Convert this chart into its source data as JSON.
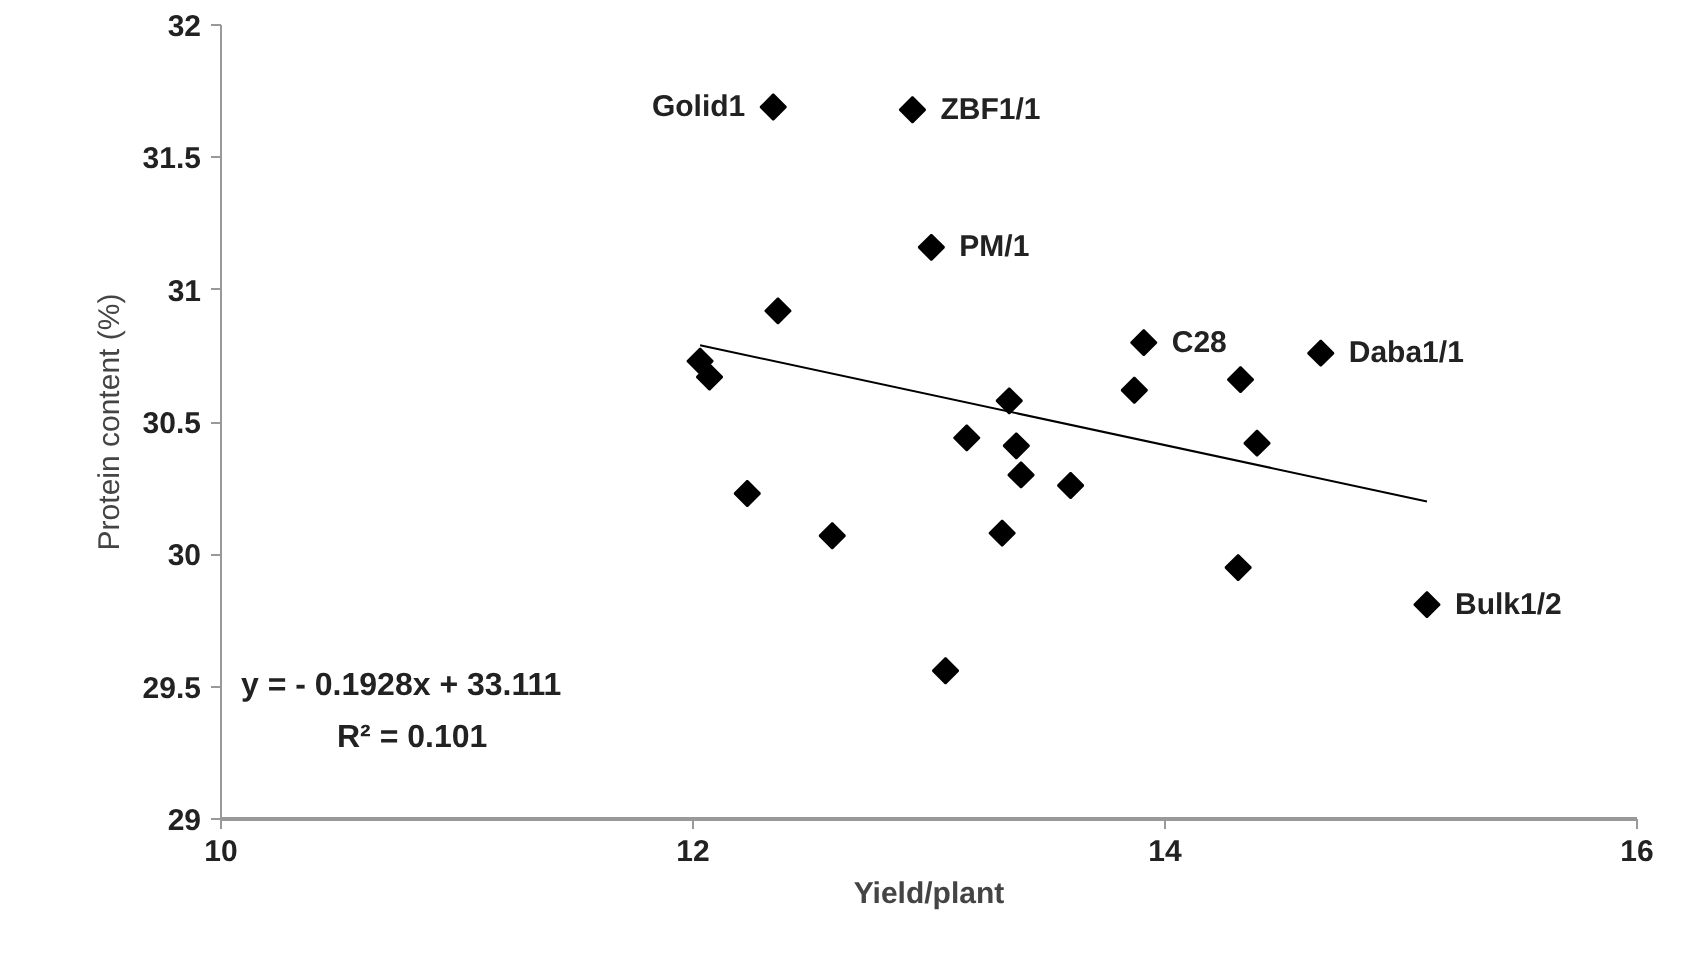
{
  "chart_data": {
    "type": "scatter",
    "xlabel": "Yield/plant",
    "ylabel": "Protein content (%)",
    "xlim": [
      10,
      16
    ],
    "xticks": [
      10,
      12,
      14,
      16
    ],
    "ylim": [
      29,
      32
    ],
    "yticks": [
      29,
      29.5,
      30,
      30.5,
      31,
      31.5,
      32
    ],
    "grid": false,
    "series": [
      {
        "color": "#000000",
        "marker": "diamond",
        "x": [
          12.34,
          12.93,
          13.01,
          13.91,
          14.66,
          15.11,
          13.87,
          14.32,
          13.34,
          13.16,
          13.37,
          13.39,
          13.6,
          14.39,
          12.59,
          13.31,
          14.31,
          13.07,
          12.36,
          12.03,
          12.07,
          12.23
        ],
        "values": [
          31.69,
          31.68,
          31.16,
          30.8,
          30.76,
          29.81,
          30.62,
          30.66,
          30.58,
          30.44,
          30.41,
          30.3,
          30.26,
          30.42,
          30.07,
          30.08,
          29.95,
          29.56,
          30.92,
          30.73,
          30.67,
          30.23
        ]
      },
      {
        "type": "line",
        "marker": "none",
        "color": "#000000",
        "x": [
          12.03,
          15.11
        ],
        "values": [
          30.79,
          30.2
        ]
      }
    ],
    "annotations": [
      {
        "text": "Golid1",
        "x": 12.34,
        "y": 31.69
      },
      {
        "text": "ZBF1/1",
        "x": 12.93,
        "y": 31.68
      },
      {
        "text": "PM/1",
        "x": 13.01,
        "y": 31.16
      },
      {
        "text": "C28",
        "x": 13.91,
        "y": 30.8
      },
      {
        "text": "Daba1/1",
        "x": 14.66,
        "y": 30.76
      },
      {
        "text": "Bulk1/2",
        "x": 15.11,
        "y": 29.81
      },
      "y = - 0.1928x + 33.111",
      "R² = 0.101"
    ]
  }
}
